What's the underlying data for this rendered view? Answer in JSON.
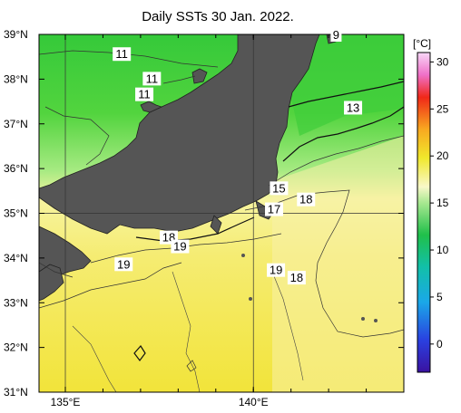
{
  "title": "Daily SSTs 30 Jan. 2022.",
  "lat_ticks": [
    {
      "label": "39°N",
      "value": 39
    },
    {
      "label": "38°N",
      "value": 38
    },
    {
      "label": "37°N",
      "value": 37
    },
    {
      "label": "36°N",
      "value": 36
    },
    {
      "label": "35°N",
      "value": 35
    },
    {
      "label": "34°N",
      "value": 34
    },
    {
      "label": "33°N",
      "value": 33
    },
    {
      "label": "32°N",
      "value": 32
    },
    {
      "label": "31°N",
      "value": 31
    }
  ],
  "lon_ticks": [
    {
      "label": "135°E",
      "value": 135
    },
    {
      "label": "140°E",
      "value": 140
    }
  ],
  "extent": {
    "lon_min": 134.3,
    "lon_max": 144.0,
    "lat_min": 31,
    "lat_max": 39
  },
  "colorbar": {
    "unit": "[°C]",
    "range": [
      -3,
      31
    ],
    "ticks": [
      {
        "label": "30",
        "value": 30
      },
      {
        "label": "25",
        "value": 25
      },
      {
        "label": "20",
        "value": 20
      },
      {
        "label": "15",
        "value": 15
      },
      {
        "label": "10",
        "value": 10
      },
      {
        "label": "5",
        "value": 5
      },
      {
        "label": "0",
        "value": 0
      }
    ]
  },
  "contour_labels": [
    {
      "text": "9",
      "lon": 142.2,
      "lat": 38.98
    },
    {
      "text": "11",
      "lon": 136.5,
      "lat": 38.55
    },
    {
      "text": "11",
      "lon": 137.3,
      "lat": 38.0
    },
    {
      "text": "11",
      "lon": 137.1,
      "lat": 37.65
    },
    {
      "text": "13",
      "lon": 142.65,
      "lat": 37.35
    },
    {
      "text": "15",
      "lon": 140.68,
      "lat": 35.55
    },
    {
      "text": "18",
      "lon": 141.4,
      "lat": 35.3
    },
    {
      "text": "17",
      "lon": 140.55,
      "lat": 35.08
    },
    {
      "text": "18",
      "lon": 137.75,
      "lat": 34.45
    },
    {
      "text": "19",
      "lon": 138.05,
      "lat": 34.25
    },
    {
      "text": "19",
      "lon": 136.55,
      "lat": 33.85
    },
    {
      "text": "19",
      "lon": 140.6,
      "lat": 33.72
    },
    {
      "text": "18",
      "lon": 141.15,
      "lat": 33.55
    }
  ]
}
